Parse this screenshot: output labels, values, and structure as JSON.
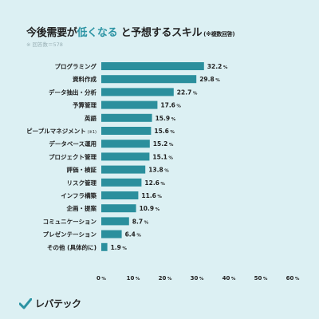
{
  "title": {
    "pre": "今後需要が",
    "highlight": "低くなる",
    "post": "と予想するスキル",
    "note": "(※複数回答)"
  },
  "subtitle": "※ 回答数＝578",
  "brand": {
    "name": "レバテック",
    "accent_color": "#2b93a3"
  },
  "chart_data": {
    "type": "bar",
    "orientation": "horizontal",
    "bar_color": "#2b8f9d",
    "categories": [
      "プログラミング",
      "資料作成",
      "データ抽出・分析",
      "予算管理",
      "英語",
      "ピープルマネジメント",
      "データベース運用",
      "プロジェクト管理",
      "評価・検証",
      "リスク管理",
      "インフラ構築",
      "企画・提案",
      "コミュニケーション",
      "プレゼンテーション",
      "その他 (具体的に)"
    ],
    "category_notes": [
      "",
      "",
      "",
      "",
      "",
      "(※1)",
      "",
      "",
      "",
      "",
      "",
      "",
      "",
      "",
      ""
    ],
    "values": [
      32.2,
      29.8,
      22.7,
      17.6,
      15.9,
      15.6,
      15.2,
      15.1,
      13.8,
      12.6,
      11.6,
      10.9,
      8.7,
      6.4,
      1.9
    ],
    "value_unit": "%",
    "xlim": [
      0,
      60
    ],
    "xticks": [
      0,
      10,
      20,
      30,
      40,
      50,
      60
    ],
    "tick_unit": "%",
    "grid": false,
    "legend": "none"
  }
}
